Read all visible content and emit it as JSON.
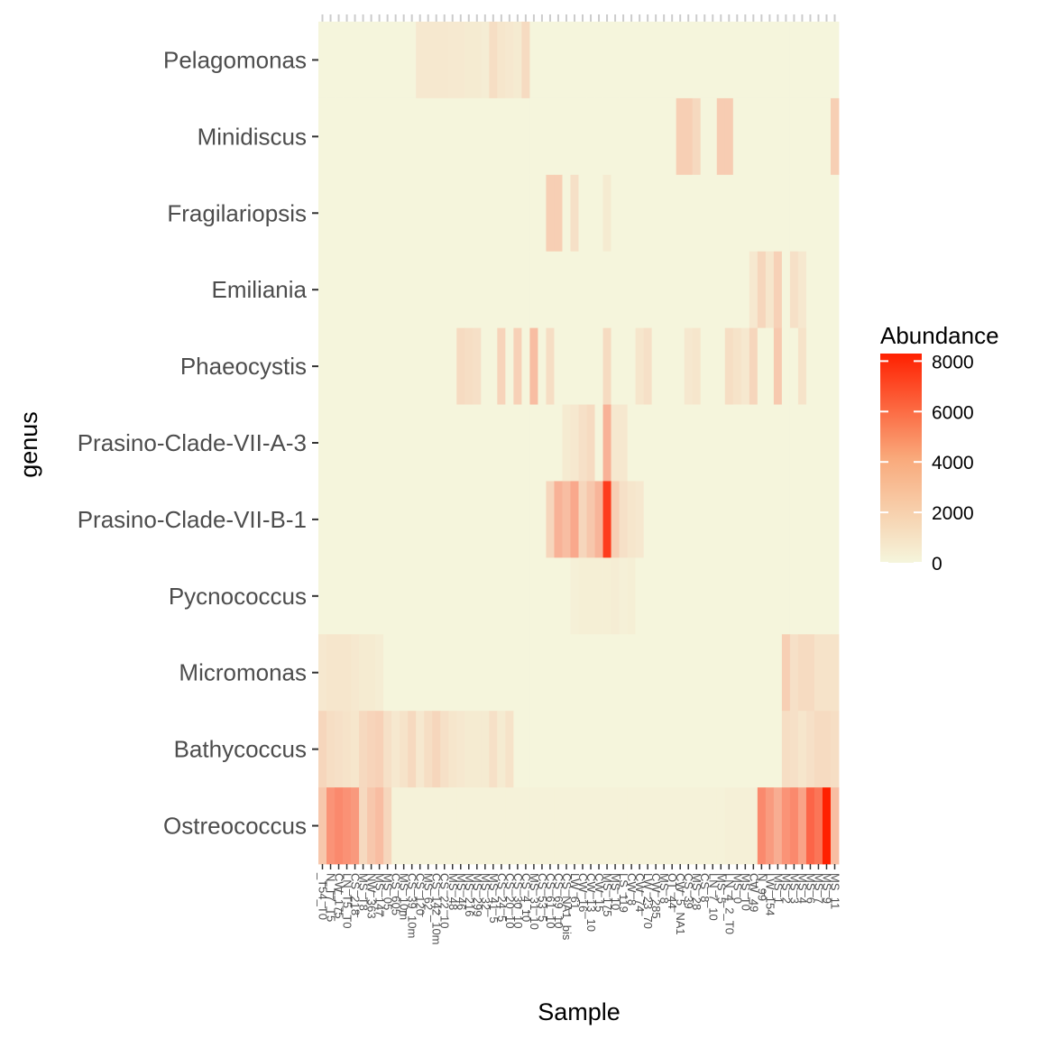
{
  "chart_data": {
    "type": "heatmap",
    "title": "",
    "xlabel": "Sample",
    "ylabel": "genus",
    "legend": {
      "title": "Abundance",
      "ticks": [
        0,
        2000,
        4000,
        6000,
        8000
      ],
      "position": "right"
    },
    "color_scale": {
      "low": "#f5f5dc",
      "high": "#ff2000",
      "range": [
        0,
        8300
      ]
    },
    "grid": false,
    "genera": [
      "Pelagomonas",
      "Minidiscus",
      "Fragilariopsis",
      "Emiliania",
      "Phaeocystis",
      "Prasino-Clade-VII-A-3",
      "Prasino-Clade-VII-B-1",
      "Pycnococcus",
      "Micromonas",
      "Bathycoccus",
      "Ostreococcus"
    ],
    "sample_count": 64,
    "sample_labels": [
      "_T54_T0",
      "N_T7_T5",
      "CW_175",
      "LN_T5_T0",
      "CS_218",
      "MS_T8_",
      "NW_363",
      "MS_147",
      "MS_05_",
      "CS_605",
      "MS_10m",
      "CS_39_10m",
      "CS_120",
      "MS_62_",
      "CS_142_10m",
      "CS_22_10",
      "MS_48_",
      "MS_46",
      "MS_216",
      "MS_299",
      "MS_32",
      "MS_41_5",
      "CS_24_5",
      "CS_20_10",
      "CS_30_10",
      "CS_4_10",
      "MS_31_10",
      "CS_53_5",
      "CS_61_10",
      "CS_69_10",
      "CS_NA1_bis",
      "LW_61_",
      "CW_16",
      "CW_13_10",
      "CW_15",
      "MS_175",
      "MS_10",
      "LS_119",
      "CW_8",
      "CW_74",
      "LW_23_70",
      "CW_285",
      "MS_8",
      "OT_44",
      "CW_5_NA1",
      "CS_39",
      "MS_28",
      "CS_8",
      "LN_7_10",
      "MS_5",
      "LN_4_2_T0",
      "MS_0",
      "MS_T0",
      "CW_49",
      "N_99",
      "LW_154",
      "MS_1",
      "MS_2",
      "MS_3",
      "MS_4",
      "MS_6",
      "MS_7",
      "MS_9",
      "MS_11"
    ],
    "hot_cells": [
      {
        "genus": "Pelagomonas",
        "samples": [
          12,
          13,
          14,
          15,
          16,
          17,
          18,
          19,
          20,
          21,
          22,
          23,
          24,
          25
        ],
        "values": [
          500,
          500,
          500,
          500,
          450,
          450,
          400,
          400,
          300,
          900,
          600,
          500,
          400,
          1000
        ]
      },
      {
        "genus": "Minidiscus",
        "samples": [
          44,
          45,
          46,
          49,
          50,
          63
        ],
        "values": [
          1500,
          1500,
          1100,
          1600,
          1600,
          1500
        ]
      },
      {
        "genus": "Fragilariopsis",
        "samples": [
          28,
          29,
          31,
          35
        ],
        "values": [
          1500,
          1500,
          800,
          400
        ]
      },
      {
        "genus": "Emiliania",
        "samples": [
          53,
          54,
          55,
          56,
          58,
          59
        ],
        "values": [
          500,
          1200,
          600,
          1400,
          800,
          500
        ]
      },
      {
        "genus": "Phaeocystis",
        "samples": [
          17,
          18,
          19,
          22,
          24,
          26,
          28,
          35,
          39,
          40,
          45,
          46,
          50,
          51,
          52,
          53,
          56,
          59
        ],
        "values": [
          1000,
          900,
          800,
          1300,
          1400,
          2200,
          900,
          1000,
          600,
          800,
          500,
          600,
          900,
          700,
          500,
          1200,
          1700,
          700
        ]
      },
      {
        "genus": "Prasino-Clade-VII-A-3",
        "samples": [
          30,
          31,
          32,
          33,
          35,
          36,
          37
        ],
        "values": [
          400,
          500,
          800,
          1000,
          2600,
          500,
          500
        ]
      },
      {
        "genus": "Prasino-Clade-VII-B-1",
        "samples": [
          28,
          29,
          30,
          31,
          32,
          33,
          34,
          35,
          36,
          37,
          38,
          39
        ],
        "values": [
          1200,
          2600,
          2200,
          3000,
          1200,
          1800,
          2500,
          7200,
          1500,
          800,
          600,
          500
        ]
      },
      {
        "genus": "Pycnococcus",
        "samples": [
          31,
          32,
          33,
          34,
          35,
          36,
          37,
          38
        ],
        "values": [
          200,
          250,
          250,
          250,
          250,
          300,
          200,
          250
        ]
      },
      {
        "genus": "Micromonas",
        "samples": [
          0,
          1,
          2,
          3,
          4,
          5,
          6,
          7,
          57,
          58,
          59,
          60,
          61,
          62,
          63
        ],
        "values": [
          500,
          600,
          600,
          600,
          500,
          400,
          400,
          300,
          1500,
          800,
          1000,
          1000,
          700,
          700,
          700
        ]
      },
      {
        "genus": "Bathycoccus",
        "samples": [
          0,
          1,
          2,
          3,
          4,
          5,
          6,
          7,
          8,
          9,
          10,
          11,
          12,
          13,
          14,
          15,
          16,
          17,
          18,
          19,
          20,
          21,
          22,
          23,
          57,
          58,
          59,
          60,
          61,
          62,
          63
        ],
        "values": [
          1200,
          900,
          800,
          700,
          600,
          1100,
          1300,
          1400,
          800,
          500,
          700,
          1100,
          500,
          900,
          1200,
          800,
          600,
          500,
          400,
          400,
          400,
          800,
          400,
          700,
          900,
          800,
          600,
          800,
          1000,
          1000,
          900
        ]
      },
      {
        "genus": "Ostreococcus",
        "samples": [
          0,
          1,
          2,
          3,
          4,
          5,
          6,
          7,
          8,
          9,
          10,
          11,
          12,
          13,
          14,
          15,
          16,
          17,
          18,
          19,
          20,
          21,
          22,
          23,
          24,
          25,
          26,
          27,
          28,
          29,
          30,
          31,
          32,
          33,
          34,
          35,
          36,
          37,
          38,
          39,
          40,
          41,
          42,
          43,
          44,
          45,
          46,
          47,
          48,
          49,
          50,
          51,
          52,
          53,
          54,
          55,
          56,
          57,
          58,
          59,
          60,
          61,
          62,
          63
        ],
        "values": [
          1800,
          3800,
          4200,
          3900,
          3600,
          1100,
          1800,
          2200,
          1200,
          100,
          100,
          100,
          100,
          100,
          100,
          100,
          100,
          100,
          100,
          100,
          100,
          100,
          100,
          100,
          100,
          100,
          100,
          100,
          100,
          100,
          100,
          100,
          100,
          100,
          100,
          100,
          100,
          100,
          100,
          100,
          100,
          100,
          100,
          100,
          100,
          100,
          100,
          100,
          100,
          100,
          200,
          200,
          200,
          200,
          4200,
          3500,
          2800,
          3800,
          4200,
          3200,
          5600,
          5000,
          8300,
          2200
        ]
      }
    ]
  }
}
